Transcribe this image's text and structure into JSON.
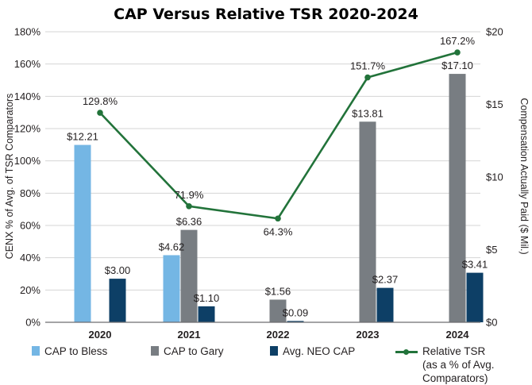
{
  "chart_data": {
    "type": "bar+line",
    "title": "CAP Versus Relative TSR 2020-2024",
    "categories": [
      "2020",
      "2021",
      "2022",
      "2023",
      "2024"
    ],
    "left_axis": {
      "label": "CENX % of Avg. of TSR Comparators",
      "range": [
        0,
        180
      ],
      "ticks": [
        0,
        20,
        40,
        60,
        80,
        100,
        120,
        140,
        160,
        180
      ],
      "tick_labels": [
        "0%",
        "20%",
        "40%",
        "60%",
        "80%",
        "100%",
        "120%",
        "140%",
        "160%",
        "180%"
      ]
    },
    "right_axis": {
      "label": "Compensation Actually Paid ($ Mil.)",
      "range": [
        0,
        20
      ],
      "ticks": [
        0,
        5,
        10,
        15,
        20
      ],
      "tick_labels": [
        "$0",
        "$5",
        "$10",
        "$15",
        "$20"
      ]
    },
    "grid": true,
    "bar_series": [
      {
        "name": "CAP to Bless",
        "color": "#74b6e4",
        "values": [
          12.21,
          4.62,
          null,
          null,
          null
        ],
        "labels": [
          "$12.21",
          "$4.62",
          "",
          "",
          ""
        ]
      },
      {
        "name": "CAP to Gary",
        "color": "#787d82",
        "values": [
          null,
          6.36,
          1.56,
          13.81,
          17.1
        ],
        "labels": [
          "",
          "$6.36",
          "$1.56",
          "$13.81",
          "$17.10"
        ]
      },
      {
        "name": "Avg. NEO CAP",
        "color": "#0d3f66",
        "values": [
          3.0,
          1.1,
          0.09,
          2.37,
          3.41
        ],
        "labels": [
          "$3.00",
          "$1.10",
          "$0.09",
          "$2.37",
          "$3.41"
        ]
      }
    ],
    "line_series": {
      "name": "Relative TSR (as a % of Avg. Comparators)",
      "color": "#22733a",
      "values": [
        129.8,
        71.9,
        64.3,
        151.7,
        167.2
      ],
      "labels": [
        "129.8%",
        "71.9%",
        "64.3%",
        "151.7%",
        "167.2%"
      ],
      "label_positions": [
        "above",
        "above",
        "below",
        "above",
        "above"
      ]
    },
    "legend_position": "bottom"
  },
  "legend": [
    {
      "label": "CAP to Bless",
      "color": "#74b6e4",
      "kind": "bar"
    },
    {
      "label": "CAP to Gary",
      "color": "#787d82",
      "kind": "bar"
    },
    {
      "label": "Avg. NEO CAP",
      "color": "#0d3f66",
      "kind": "bar"
    },
    {
      "label": "Relative TSR\n(as a % of Avg.\nComparators)",
      "color": "#22733a",
      "kind": "line"
    }
  ]
}
